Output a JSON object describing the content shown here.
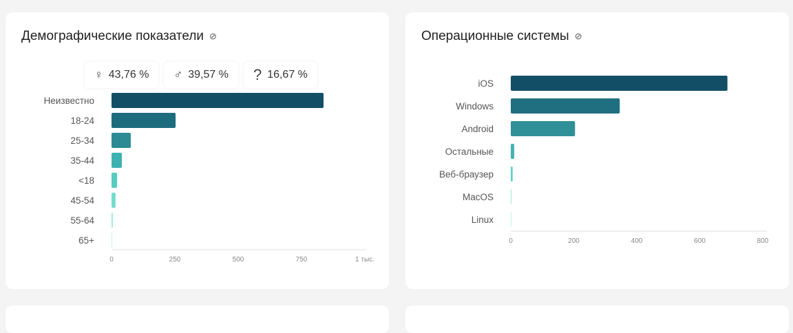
{
  "demographics": {
    "title": "Демографические показатели",
    "link_icon": "link-icon",
    "stats": [
      {
        "icon": "female-icon",
        "glyph": "♀",
        "value": "43,76 %"
      },
      {
        "icon": "male-icon",
        "glyph": "♂",
        "value": "39,57 %"
      },
      {
        "icon": "question-icon",
        "glyph": "?",
        "value": "16,67 %"
      }
    ]
  },
  "os": {
    "title": "Операционные системы",
    "link_icon": "link-icon"
  },
  "chart_data": [
    {
      "type": "bar",
      "orientation": "horizontal",
      "title": "Демографические показатели",
      "categories": [
        "Неизвестно",
        "18-24",
        "25-34",
        "35-44",
        "<18",
        "45-54",
        "55-64",
        "65+"
      ],
      "values": [
        837,
        253,
        76,
        41,
        22,
        16,
        5,
        1
      ],
      "xlim": [
        0,
        1000
      ],
      "xticks": [
        0,
        250,
        500,
        750,
        1000
      ],
      "xtick_labels": [
        "0",
        "250",
        "500",
        "750",
        "1 тыс."
      ],
      "colors": [
        "#124f66",
        "#1c6c7d",
        "#2b8a93",
        "#3fb0b0",
        "#56cbc0",
        "#73dcca",
        "#9aebd8",
        "#c5f3e8"
      ]
    },
    {
      "type": "bar",
      "orientation": "horizontal",
      "title": "Операционные системы",
      "categories": [
        "iOS",
        "Windows",
        "Android",
        "Остальные",
        "Веб-браузер",
        "MacOS",
        "Linux"
      ],
      "values": [
        688,
        346,
        204,
        11,
        6,
        1,
        0.5
      ],
      "xlim": [
        0,
        800
      ],
      "xticks": [
        0,
        200,
        400,
        600,
        800
      ],
      "xtick_labels": [
        "0",
        "200",
        "400",
        "600",
        "800"
      ],
      "colors": [
        "#124f66",
        "#1f6f80",
        "#2f9098",
        "#45b3b0",
        "#62d0c4",
        "#9ee9d9",
        "#c5f3e8"
      ]
    }
  ]
}
